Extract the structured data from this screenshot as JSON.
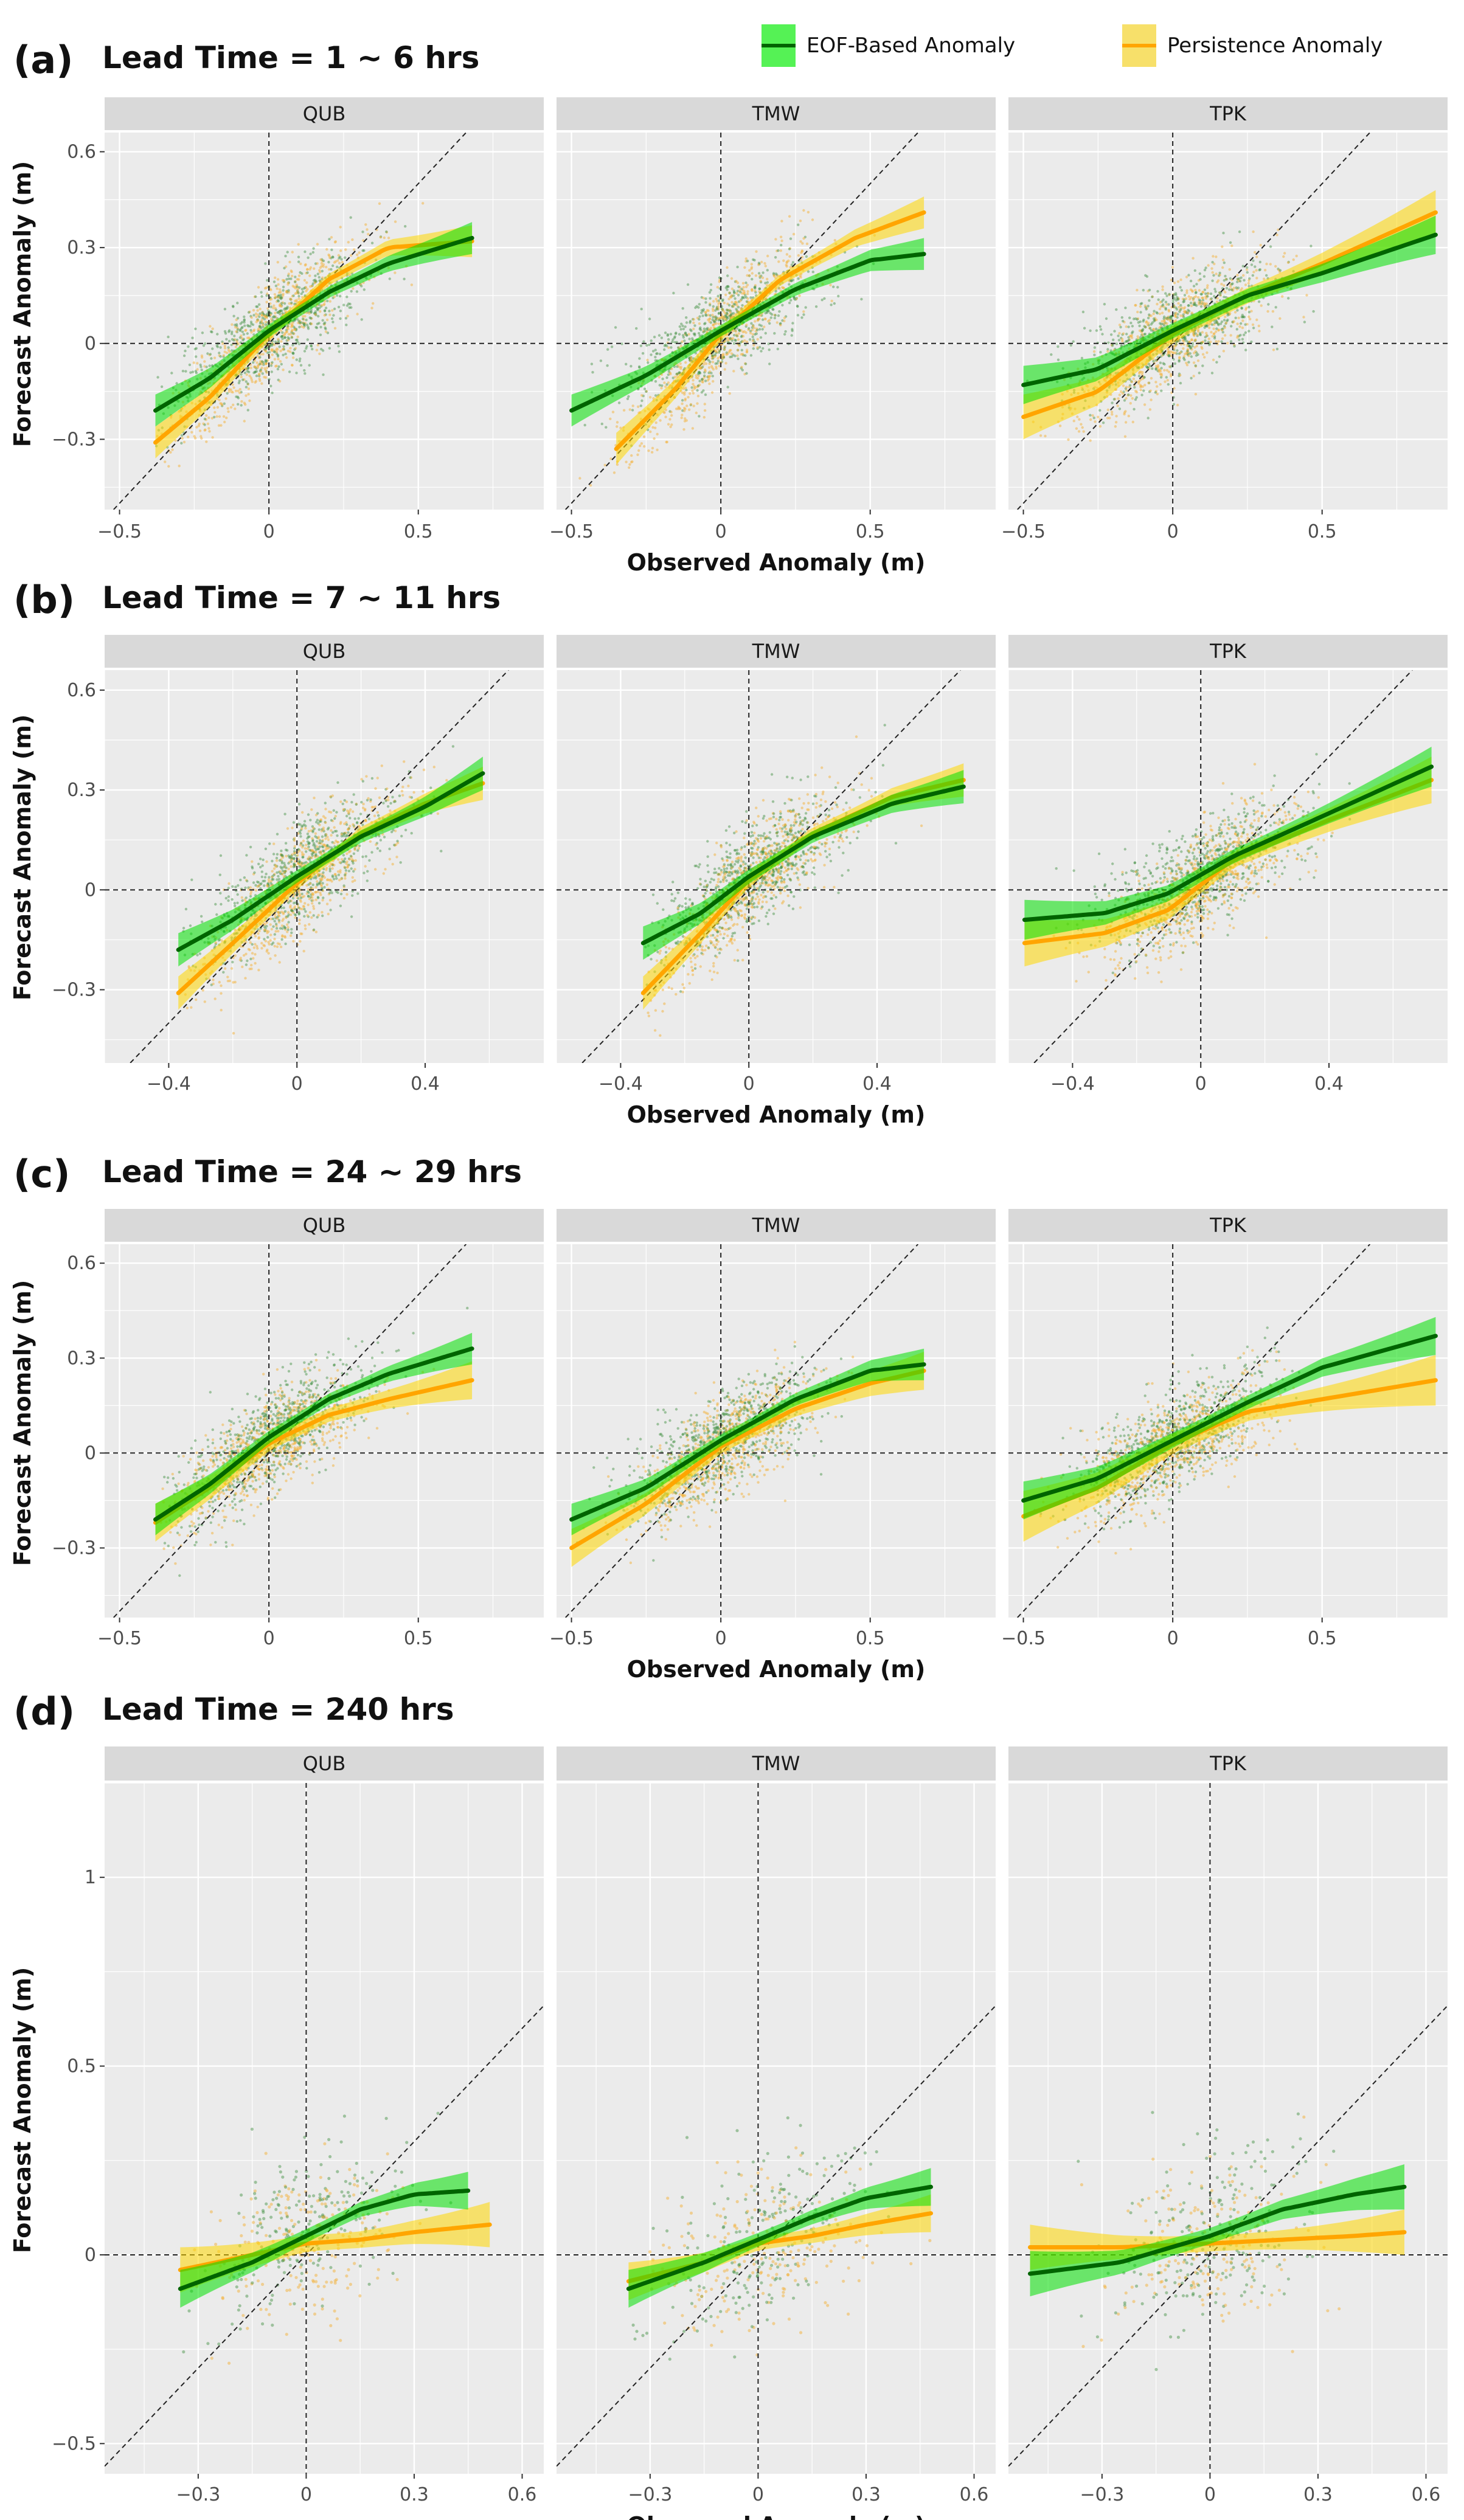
{
  "legend": [
    {
      "label": "EOF-Based Anomaly",
      "line": "#006400",
      "band": "#00ff00"
    },
    {
      "label": "Persistence Anomaly",
      "line": "#ffa500",
      "band": "#ffd700"
    }
  ],
  "colors": {
    "panel_bg": "#ebebeb",
    "strip_bg": "#d9d9d9",
    "grid": "#ffffff",
    "green_line": "#006400",
    "orange_line": "#ffa500"
  },
  "stations": [
    "QUB",
    "TMW",
    "TPK"
  ],
  "y_axis_label": "Forecast Anomaly (m)",
  "x_axis_label": "Observed Anomaly (m)",
  "chart_data": [
    {
      "type": "scatter",
      "tag": "(a)",
      "title": "Lead Time = 1 ~ 6 hrs",
      "ylim": [
        -0.52,
        0.66
      ],
      "y_ticks": [
        {
          "v": 0.6,
          "label": "0.6"
        },
        {
          "v": 0.3,
          "label": "0.3"
        },
        {
          "v": 0,
          "label": "0"
        },
        {
          "v": -0.3,
          "label": "-0.3"
        }
      ],
      "facets": [
        {
          "station": "QUB",
          "xlim": [
            -0.55,
            0.92
          ],
          "x_ticks": [
            {
              "v": -0.5,
              "label": "-0.5"
            },
            {
              "v": 0,
              "label": "0"
            },
            {
              "v": 0.5,
              "label": "0.5"
            }
          ],
          "eof": {
            "x": [
              -0.38,
              -0.2,
              0,
              0.2,
              0.4,
              0.68
            ],
            "y": [
              -0.21,
              -0.11,
              0.04,
              0.16,
              0.25,
              0.33
            ],
            "band": 0.05
          },
          "persistence": {
            "x": [
              -0.38,
              -0.2,
              0,
              0.2,
              0.4,
              0.68
            ],
            "y": [
              -0.31,
              -0.17,
              0.03,
              0.2,
              0.3,
              0.32
            ],
            "band": 0.05
          }
        },
        {
          "station": "TMW",
          "xlim": [
            -0.55,
            0.92
          ],
          "x_ticks": [
            {
              "v": -0.5,
              "label": "-0.5"
            },
            {
              "v": 0,
              "label": "0"
            },
            {
              "v": 0.5,
              "label": "0.5"
            }
          ],
          "eof": {
            "x": [
              -0.5,
              -0.25,
              0,
              0.25,
              0.5,
              0.68
            ],
            "y": [
              -0.21,
              -0.1,
              0.04,
              0.17,
              0.26,
              0.28
            ],
            "band": 0.05
          },
          "persistence": {
            "x": [
              -0.35,
              -0.15,
              0,
              0.2,
              0.45,
              0.68
            ],
            "y": [
              -0.33,
              -0.14,
              0.03,
              0.2,
              0.33,
              0.41
            ],
            "band": 0.05
          }
        },
        {
          "station": "TPK",
          "xlim": [
            -0.55,
            0.92
          ],
          "x_ticks": [
            {
              "v": -0.5,
              "label": "-0.5"
            },
            {
              "v": 0,
              "label": "0"
            },
            {
              "v": 0.5,
              "label": "0.5"
            }
          ],
          "eof": {
            "x": [
              -0.5,
              -0.25,
              0,
              0.25,
              0.5,
              0.88
            ],
            "y": [
              -0.13,
              -0.08,
              0.04,
              0.15,
              0.22,
              0.34
            ],
            "band": 0.06
          },
          "persistence": {
            "x": [
              -0.5,
              -0.25,
              0,
              0.25,
              0.5,
              0.88
            ],
            "y": [
              -0.23,
              -0.15,
              0.03,
              0.15,
              0.25,
              0.41
            ],
            "band": 0.07
          }
        }
      ]
    },
    {
      "type": "scatter",
      "tag": "(b)",
      "title": "Lead Time = 7 ~ 11 hrs",
      "ylim": [
        -0.52,
        0.66
      ],
      "y_ticks": [
        {
          "v": 0.6,
          "label": "0.6"
        },
        {
          "v": 0.3,
          "label": "0.3"
        },
        {
          "v": 0,
          "label": "0"
        },
        {
          "v": -0.3,
          "label": "-0.3"
        }
      ],
      "facets": [
        {
          "station": "QUB",
          "xlim": [
            -0.6,
            0.77
          ],
          "x_ticks": [
            {
              "v": -0.4,
              "label": "-0.4"
            },
            {
              "v": 0,
              "label": "0"
            },
            {
              "v": 0.4,
              "label": "0.4"
            }
          ],
          "eof": {
            "x": [
              -0.37,
              -0.2,
              0,
              0.2,
              0.4,
              0.58
            ],
            "y": [
              -0.18,
              -0.09,
              0.04,
              0.16,
              0.25,
              0.35
            ],
            "band": 0.05
          },
          "persistence": {
            "x": [
              -0.37,
              -0.2,
              0,
              0.2,
              0.4,
              0.58
            ],
            "y": [
              -0.31,
              -0.16,
              0.02,
              0.17,
              0.26,
              0.32
            ],
            "band": 0.05
          }
        },
        {
          "station": "TMW",
          "xlim": [
            -0.6,
            0.77
          ],
          "x_ticks": [
            {
              "v": -0.4,
              "label": "-0.4"
            },
            {
              "v": 0,
              "label": "0"
            },
            {
              "v": 0.4,
              "label": "0.4"
            }
          ],
          "eof": {
            "x": [
              -0.33,
              -0.15,
              0,
              0.2,
              0.45,
              0.67
            ],
            "y": [
              -0.16,
              -0.07,
              0.04,
              0.16,
              0.26,
              0.31
            ],
            "band": 0.05
          },
          "persistence": {
            "x": [
              -0.33,
              -0.15,
              0,
              0.2,
              0.45,
              0.67
            ],
            "y": [
              -0.31,
              -0.13,
              0.03,
              0.17,
              0.28,
              0.33
            ],
            "band": 0.05
          }
        },
        {
          "station": "TPK",
          "xlim": [
            -0.6,
            0.77
          ],
          "x_ticks": [
            {
              "v": -0.4,
              "label": "-0.4"
            },
            {
              "v": 0,
              "label": "0"
            },
            {
              "v": 0.4,
              "label": "0.4"
            }
          ],
          "eof": {
            "x": [
              -0.55,
              -0.3,
              -0.1,
              0.1,
              0.4,
              0.72
            ],
            "y": [
              -0.09,
              -0.07,
              -0.01,
              0.1,
              0.23,
              0.37
            ],
            "band": 0.06
          },
          "persistence": {
            "x": [
              -0.55,
              -0.3,
              -0.1,
              0.1,
              0.4,
              0.72
            ],
            "y": [
              -0.16,
              -0.13,
              -0.06,
              0.09,
              0.21,
              0.33
            ],
            "band": 0.07
          }
        }
      ]
    },
    {
      "type": "scatter",
      "tag": "(c)",
      "title": "Lead Time = 24 ~ 29 hrs",
      "ylim": [
        -0.52,
        0.66
      ],
      "y_ticks": [
        {
          "v": 0.6,
          "label": "0.6"
        },
        {
          "v": 0.3,
          "label": "0.3"
        },
        {
          "v": 0,
          "label": "0"
        },
        {
          "v": -0.3,
          "label": "-0.3"
        }
      ],
      "facets": [
        {
          "station": "QUB",
          "xlim": [
            -0.55,
            0.92
          ],
          "x_ticks": [
            {
              "v": -0.5,
              "label": "-0.5"
            },
            {
              "v": 0,
              "label": "0"
            },
            {
              "v": 0.5,
              "label": "0.5"
            }
          ],
          "eof": {
            "x": [
              -0.38,
              -0.2,
              0,
              0.2,
              0.4,
              0.68
            ],
            "y": [
              -0.21,
              -0.1,
              0.05,
              0.17,
              0.25,
              0.33
            ],
            "band": 0.05
          },
          "persistence": {
            "x": [
              -0.38,
              -0.2,
              0,
              0.2,
              0.4,
              0.68
            ],
            "y": [
              -0.22,
              -0.11,
              0.03,
              0.12,
              0.17,
              0.23
            ],
            "band": 0.06
          }
        },
        {
          "station": "TMW",
          "xlim": [
            -0.55,
            0.92
          ],
          "x_ticks": [
            {
              "v": -0.5,
              "label": "-0.5"
            },
            {
              "v": 0,
              "label": "0"
            },
            {
              "v": 0.5,
              "label": "0.5"
            }
          ],
          "eof": {
            "x": [
              -0.5,
              -0.25,
              0,
              0.25,
              0.5,
              0.68
            ],
            "y": [
              -0.21,
              -0.11,
              0.04,
              0.17,
              0.26,
              0.28
            ],
            "band": 0.05
          },
          "persistence": {
            "x": [
              -0.5,
              -0.25,
              0,
              0.25,
              0.5,
              0.68
            ],
            "y": [
              -0.3,
              -0.16,
              0.02,
              0.14,
              0.22,
              0.26
            ],
            "band": 0.06
          }
        },
        {
          "station": "TPK",
          "xlim": [
            -0.55,
            0.92
          ],
          "x_ticks": [
            {
              "v": -0.5,
              "label": "-0.5"
            },
            {
              "v": 0,
              "label": "0"
            },
            {
              "v": 0.5,
              "label": "0.5"
            }
          ],
          "eof": {
            "x": [
              -0.5,
              -0.25,
              0,
              0.25,
              0.5,
              0.88
            ],
            "y": [
              -0.15,
              -0.08,
              0.04,
              0.16,
              0.27,
              0.37
            ],
            "band": 0.06
          },
          "persistence": {
            "x": [
              -0.5,
              -0.25,
              0,
              0.25,
              0.5,
              0.88
            ],
            "y": [
              -0.2,
              -0.11,
              0.03,
              0.13,
              0.17,
              0.23
            ],
            "band": 0.08
          }
        }
      ]
    },
    {
      "type": "scatter",
      "tag": "(d)",
      "title": "Lead Time = 240 hrs",
      "ylim": [
        -0.58,
        1.25
      ],
      "y_ticks": [
        {
          "v": 1,
          "label": "1"
        },
        {
          "v": 0.5,
          "label": "0.5"
        },
        {
          "v": 0,
          "label": "0"
        },
        {
          "v": -0.5,
          "label": "-0.5"
        }
      ],
      "facets": [
        {
          "station": "QUB",
          "xlim": [
            -0.56,
            0.66
          ],
          "x_ticks": [
            {
              "v": -0.3,
              "label": "-0.3"
            },
            {
              "v": 0,
              "label": "0"
            },
            {
              "v": 0.3,
              "label": "0.3"
            },
            {
              "v": 0.6,
              "label": "0.6"
            }
          ],
          "eof": {
            "x": [
              -0.35,
              -0.15,
              0,
              0.15,
              0.3,
              0.45
            ],
            "y": [
              -0.09,
              -0.02,
              0.05,
              0.12,
              0.16,
              0.17
            ],
            "band": 0.05
          },
          "persistence": {
            "x": [
              -0.35,
              -0.15,
              0,
              0.15,
              0.3,
              0.51
            ],
            "y": [
              -0.04,
              0,
              0.03,
              0.04,
              0.06,
              0.08
            ],
            "band": 0.06
          }
        },
        {
          "station": "TMW",
          "xlim": [
            -0.56,
            0.66
          ],
          "x_ticks": [
            {
              "v": -0.3,
              "label": "-0.3"
            },
            {
              "v": 0,
              "label": "0"
            },
            {
              "v": 0.3,
              "label": "0.3"
            },
            {
              "v": 0.6,
              "label": "0.6"
            }
          ],
          "eof": {
            "x": [
              -0.36,
              -0.15,
              0,
              0.15,
              0.3,
              0.48
            ],
            "y": [
              -0.09,
              -0.02,
              0.04,
              0.1,
              0.15,
              0.18
            ],
            "band": 0.05
          },
          "persistence": {
            "x": [
              -0.36,
              -0.15,
              0,
              0.15,
              0.3,
              0.48
            ],
            "y": [
              -0.07,
              -0.02,
              0.03,
              0.05,
              0.08,
              0.11
            ],
            "band": 0.05
          }
        },
        {
          "station": "TPK",
          "xlim": [
            -0.56,
            0.66
          ],
          "x_ticks": [
            {
              "v": -0.3,
              "label": "-0.3"
            },
            {
              "v": 0,
              "label": "0"
            },
            {
              "v": 0.3,
              "label": "0.3"
            },
            {
              "v": 0.6,
              "label": "0.6"
            }
          ],
          "eof": {
            "x": [
              -0.5,
              -0.25,
              0,
              0.2,
              0.4,
              0.54
            ],
            "y": [
              -0.05,
              -0.02,
              0.05,
              0.12,
              0.16,
              0.18
            ],
            "band": 0.06
          },
          "persistence": {
            "x": [
              -0.5,
              -0.25,
              0,
              0.2,
              0.4,
              0.54
            ],
            "y": [
              0.02,
              0.02,
              0.03,
              0.04,
              0.05,
              0.06
            ],
            "band": 0.06
          }
        }
      ]
    }
  ]
}
